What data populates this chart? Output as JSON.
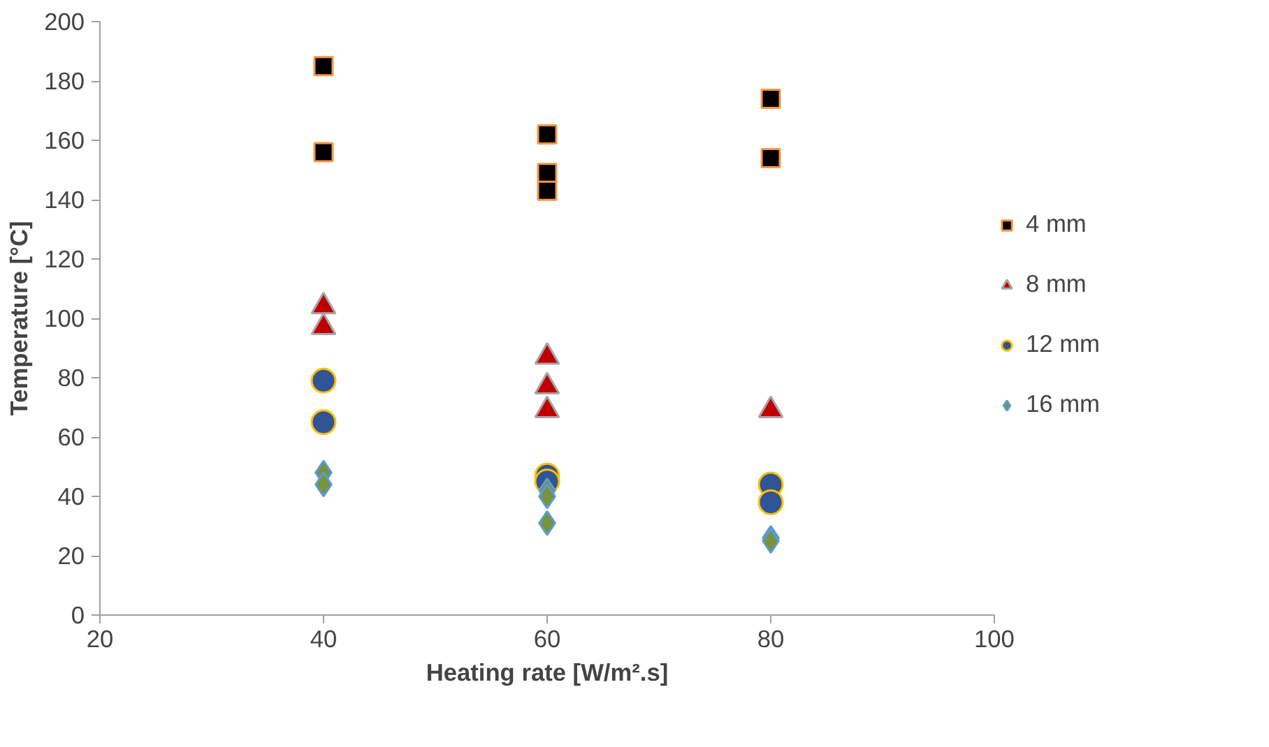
{
  "chart_data": {
    "type": "scatter",
    "xlabel": "Heating rate [W/m².s]",
    "ylabel": "Temperature [°C]",
    "xlim": [
      20,
      100
    ],
    "xticks": [
      20,
      40,
      60,
      80,
      100
    ],
    "ylim": [
      0,
      200
    ],
    "yticks": [
      0,
      20,
      40,
      60,
      80,
      100,
      120,
      140,
      160,
      180,
      200
    ],
    "grid": false,
    "legend": "right",
    "series": [
      {
        "name": "4 mm",
        "color": "#000000",
        "marker": "square",
        "x": [
          40,
          40,
          60,
          60,
          60,
          80,
          80
        ],
        "values": [
          185,
          156,
          162,
          149,
          143,
          174,
          154
        ]
      },
      {
        "name": "8 mm",
        "color": "#c00000",
        "marker": "triangle",
        "x": [
          40,
          40,
          60,
          60,
          60,
          80
        ],
        "values": [
          104,
          97,
          87,
          77,
          69,
          69
        ]
      },
      {
        "name": "12 mm",
        "color": "#2f5597",
        "marker": "circle",
        "x": [
          40,
          40,
          60,
          60,
          80,
          80
        ],
        "values": [
          79,
          65,
          47,
          45,
          44,
          38
        ]
      },
      {
        "name": "16 mm",
        "color": "#77933c",
        "marker": "diamond",
        "x": [
          40,
          40,
          60,
          60,
          60,
          80,
          80
        ],
        "values": [
          48,
          44,
          42,
          40,
          31,
          26,
          25
        ]
      }
    ]
  }
}
